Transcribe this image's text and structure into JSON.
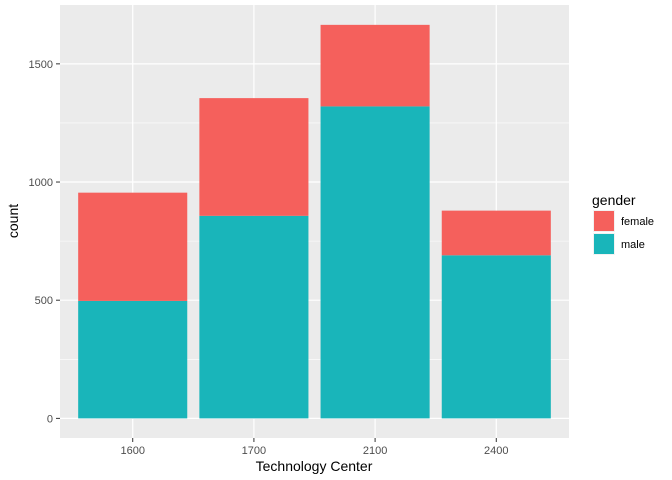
{
  "chart_data": {
    "type": "bar",
    "stacked": true,
    "categories": [
      "1600",
      "1700",
      "2100",
      "2400"
    ],
    "series": [
      {
        "name": "male",
        "values": [
          497,
          857,
          1320,
          690
        ],
        "color": "#19b5ba"
      },
      {
        "name": "female",
        "values": [
          458,
          498,
          345,
          189
        ],
        "color": "#f5605c"
      }
    ],
    "xlabel": "Technology Center",
    "ylabel": "count",
    "ylim": [
      -83,
      1749
    ],
    "yticks": [
      0,
      500,
      1000,
      1500
    ],
    "grid": true,
    "legend": {
      "title": "gender",
      "placement": "right",
      "entries": [
        {
          "name": "female",
          "color": "#f5605c"
        },
        {
          "name": "male",
          "color": "#19b5ba"
        }
      ]
    },
    "panel_background": "#ebebeb",
    "grid_color": "#ffffff"
  }
}
